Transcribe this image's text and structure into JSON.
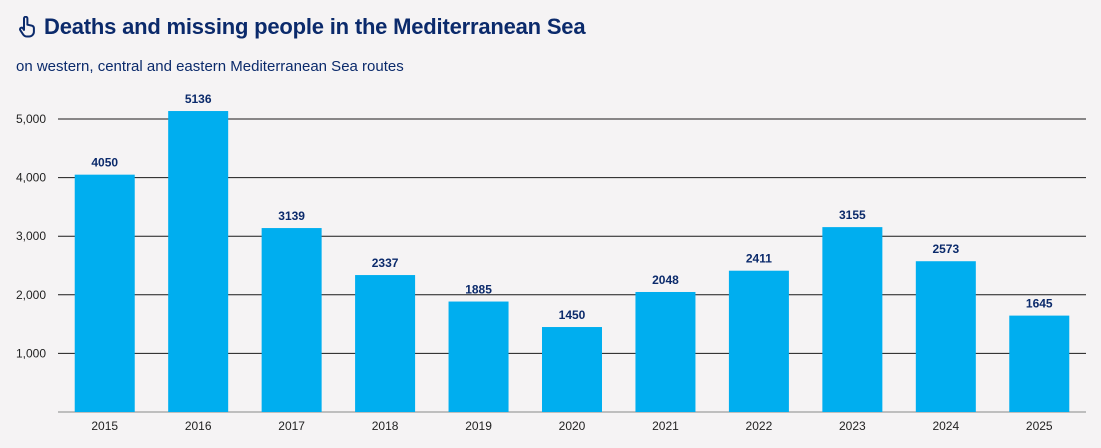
{
  "header": {
    "title": "Deaths and missing people in the Mediterranean Sea",
    "subtitle": "on western, central and eastern Mediterranean Sea routes",
    "icon": "hand-pointer-icon"
  },
  "colors": {
    "bar": "#00aeef",
    "title": "#0b2a6b",
    "grid": "#1a1a1a",
    "background": "#f5f3f4"
  },
  "chart_data": {
    "type": "bar",
    "title": "Deaths and missing people in the Mediterranean Sea",
    "subtitle": "on western, central and eastern Mediterranean Sea routes",
    "xlabel": "",
    "ylabel": "",
    "categories": [
      "2015",
      "2016",
      "2017",
      "2018",
      "2019",
      "2020",
      "2021",
      "2022",
      "2023",
      "2024",
      "2025"
    ],
    "values": [
      4050,
      5136,
      3139,
      2337,
      1885,
      1450,
      2048,
      2411,
      3155,
      2573,
      1645
    ],
    "data_labels": [
      "4050",
      "5136",
      "3139",
      "2337",
      "1885",
      "1450",
      "2048",
      "2411",
      "3155",
      "2573",
      "1645"
    ],
    "ylim": [
      0,
      5000
    ],
    "yticks": [
      1000,
      2000,
      3000,
      4000,
      5000
    ],
    "ytick_labels": [
      "1,000",
      "2,000",
      "3,000",
      "4,000",
      "5,000"
    ],
    "grid": true,
    "legend": "none"
  }
}
